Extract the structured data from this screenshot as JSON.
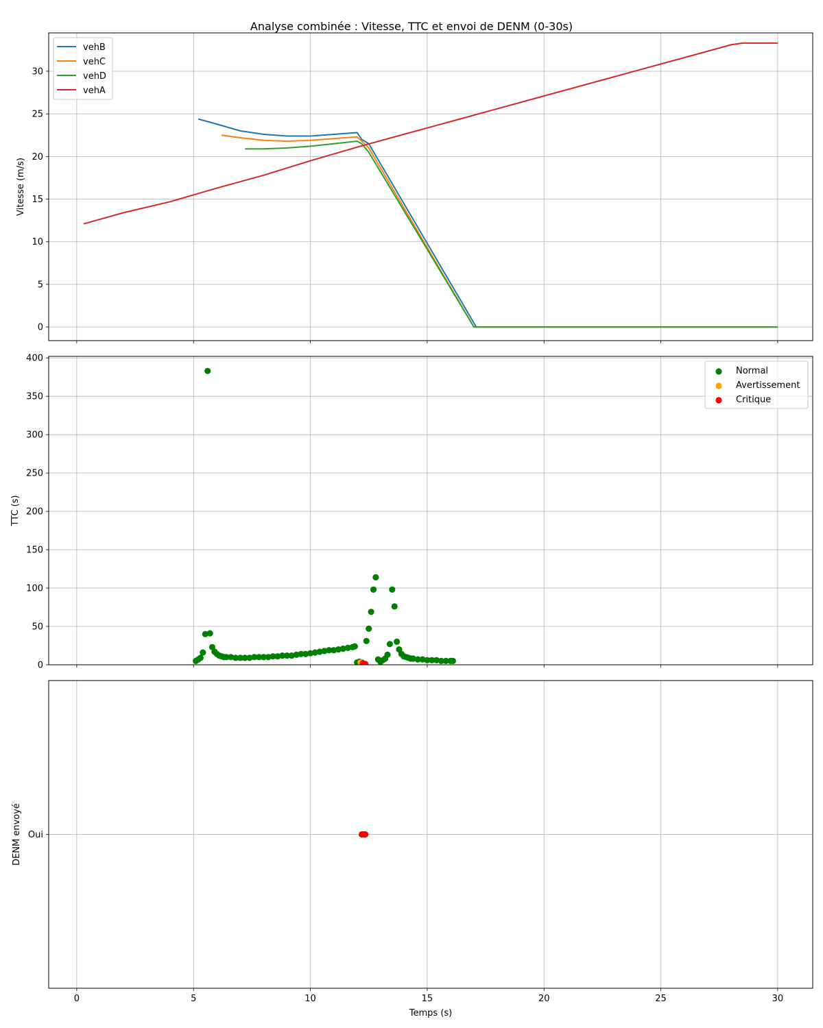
{
  "chart_data": {
    "title": "Analyse combinée : Vitesse, TTC et envoi de DENM (0-30s)",
    "xlabel": "Temps (s)",
    "xlim": [
      -1.2,
      31.5
    ],
    "xticks": [
      0,
      5,
      10,
      15,
      20,
      25,
      30
    ],
    "grid": true,
    "panels": [
      {
        "type": "line",
        "ylabel": "Vitesse (m/s)",
        "ylim": [
          -1.6,
          34.5
        ],
        "yticks": [
          0,
          5,
          10,
          15,
          20,
          25,
          30
        ],
        "legend": "top-left",
        "series": [
          {
            "name": "vehB",
            "color": "#1f77b4",
            "x": [
              5.2,
              6,
              7,
              8,
              9,
              10,
              11,
              12,
              12.2,
              12.5,
              17.1,
              30
            ],
            "y": [
              24.4,
              23.8,
              23.0,
              22.6,
              22.4,
              22.4,
              22.6,
              22.8,
              22.0,
              21.5,
              0,
              0
            ]
          },
          {
            "name": "vehC",
            "color": "#ff7f0e",
            "x": [
              6.2,
              7,
              8,
              9,
              10,
              11,
              12,
              12.2,
              12.5,
              17.0,
              30
            ],
            "y": [
              22.5,
              22.2,
              21.9,
              21.8,
              21.9,
              22.1,
              22.3,
              21.8,
              21.0,
              0,
              0
            ]
          },
          {
            "name": "vehD",
            "color": "#2ca02c",
            "x": [
              7.2,
              8,
              9,
              10,
              11,
              12,
              12.2,
              12.5,
              17.0,
              30
            ],
            "y": [
              20.9,
              20.9,
              21.0,
              21.2,
              21.5,
              21.8,
              21.5,
              20.5,
              0,
              0
            ]
          },
          {
            "name": "vehA",
            "color": "#d62728",
            "x": [
              0.3,
              2,
              4,
              6,
              8,
              10,
              12,
              14,
              16,
              18,
              20,
              22,
              24,
              26,
              28,
              28.5,
              30
            ],
            "y": [
              12.1,
              13.4,
              14.7,
              16.3,
              17.8,
              19.5,
              21.1,
              22.6,
              24.1,
              25.6,
              27.1,
              28.6,
              30.1,
              31.6,
              33.1,
              33.3,
              33.3
            ]
          }
        ]
      },
      {
        "type": "scatter",
        "ylabel": "TTC (s)",
        "ylim": [
          0,
          402
        ],
        "yticks": [
          0,
          50,
          100,
          150,
          200,
          250,
          300,
          350,
          400
        ],
        "legend": "top-right",
        "series": [
          {
            "name": "Normal",
            "color": "#008000",
            "x": [
              5.1,
              5.2,
              5.3,
              5.4,
              5.5,
              5.6,
              5.7,
              5.8,
              5.9,
              6.0,
              6.1,
              6.2,
              6.3,
              6.4,
              6.6,
              6.8,
              7.0,
              7.2,
              7.4,
              7.6,
              7.8,
              8.0,
              8.2,
              8.4,
              8.6,
              8.8,
              9.0,
              9.2,
              9.4,
              9.6,
              9.8,
              10.0,
              10.2,
              10.4,
              10.6,
              10.8,
              11.0,
              11.2,
              11.4,
              11.6,
              11.8,
              11.9,
              12.0,
              12.1,
              12.2,
              12.4,
              12.5,
              12.6,
              12.7,
              12.8,
              12.9,
              13.0,
              13.1,
              13.2,
              13.3,
              13.4,
              13.5,
              13.6,
              13.7,
              13.8,
              13.9,
              14.0,
              14.1,
              14.2,
              14.3,
              14.4,
              14.6,
              14.8,
              15.0,
              15.2,
              15.4,
              15.6,
              15.8,
              16.0,
              16.1
            ],
            "y": [
              5,
              7,
              9,
              16,
              40,
              383,
              41,
              23,
              17,
              14,
              12,
              11,
              10,
              10,
              10,
              9,
              9,
              9,
              9,
              10,
              10,
              10,
              10,
              11,
              11,
              12,
              12,
              12,
              13,
              14,
              14,
              15,
              16,
              17,
              18,
              19,
              19,
              20,
              21,
              22,
              23,
              24,
              3,
              4,
              3,
              31,
              47,
              69,
              98,
              114,
              7,
              4,
              6,
              8,
              13,
              27,
              98,
              76,
              30,
              20,
              14,
              11,
              10,
              9,
              8,
              8,
              7,
              7,
              6,
              6,
              6,
              5,
              5,
              5,
              5
            ]
          },
          {
            "name": "Avertissement",
            "color": "#ffa500",
            "x": [
              12.15
            ],
            "y": [
              3
            ]
          },
          {
            "name": "Critique",
            "color": "#ff0000",
            "x": [
              12.25,
              12.35
            ],
            "y": [
              2,
              1
            ]
          }
        ]
      },
      {
        "type": "scatter",
        "ylabel": "DENM envoyé",
        "categories": [
          "Oui"
        ],
        "series": [
          {
            "name": "Critique",
            "color": "#ff0000",
            "x": [
              12.2,
              12.25,
              12.3,
              12.35
            ],
            "y": [
              "Oui",
              "Oui",
              "Oui",
              "Oui"
            ]
          }
        ]
      }
    ]
  }
}
